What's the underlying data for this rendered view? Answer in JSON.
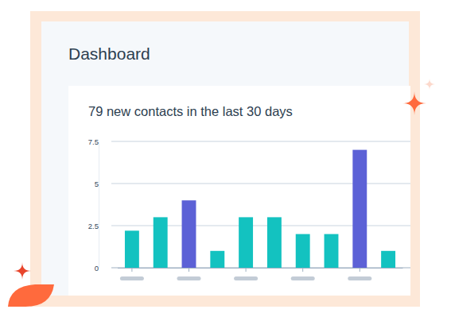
{
  "page": {
    "title": "Dashboard"
  },
  "chart_data": {
    "type": "bar",
    "title": "79 new contacts in the last 30 days",
    "categories": [
      null,
      null,
      null,
      null,
      null,
      null,
      null,
      null,
      null,
      null
    ],
    "values": [
      2.2,
      3,
      4,
      1,
      3,
      3,
      2,
      2,
      7,
      1
    ],
    "colors": [
      "#13c2c0",
      "#13c2c0",
      "#5c61d6",
      "#13c2c0",
      "#13c2c0",
      "#13c2c0",
      "#13c2c0",
      "#13c2c0",
      "#5c61d6",
      "#13c2c0"
    ],
    "ylim": [
      0,
      7.5
    ],
    "yticks": [
      0,
      2.5,
      5,
      7.5
    ],
    "grid": true,
    "tick_labels": "y"
  }
}
